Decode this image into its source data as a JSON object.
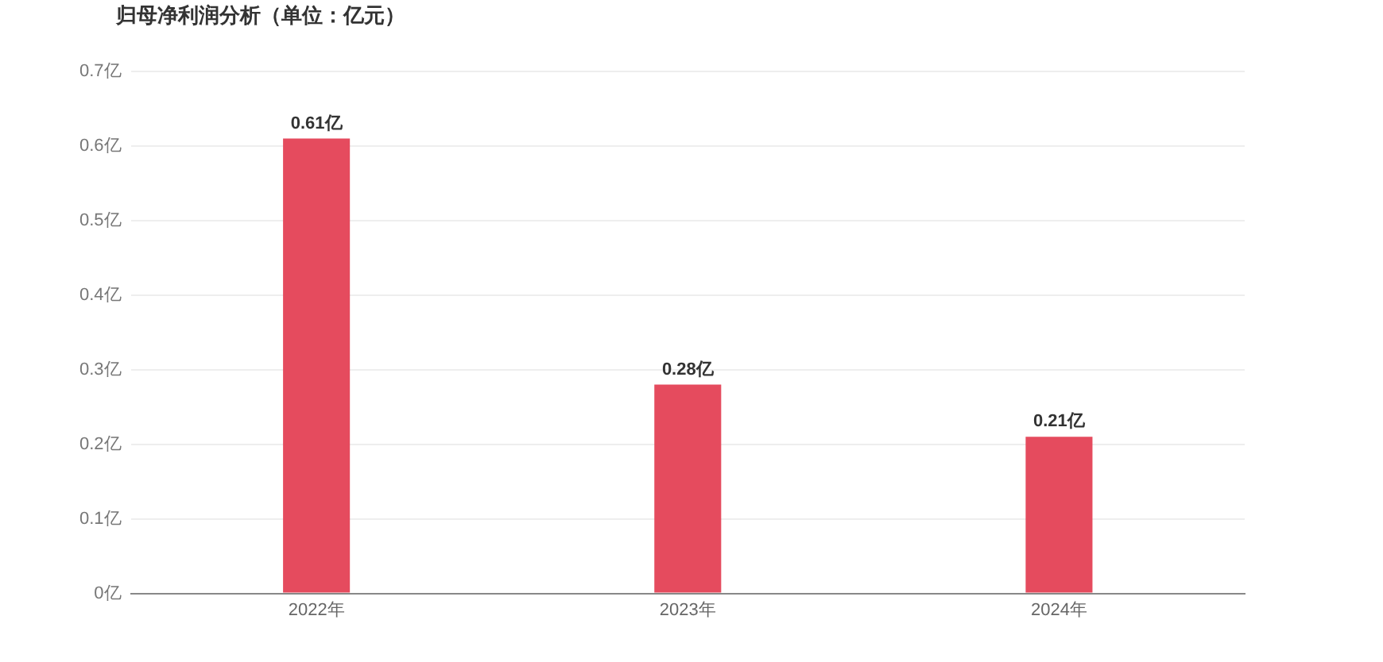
{
  "chart_data": {
    "type": "bar",
    "title": "归母净利润分析（单位：亿元）",
    "categories": [
      "2022年",
      "2023年",
      "2024年"
    ],
    "values": [
      0.61,
      0.28,
      0.21
    ],
    "value_labels": [
      "0.61亿",
      "0.28亿",
      "0.21亿"
    ],
    "color": "#e54b5e",
    "ylim": [
      0,
      0.7
    ],
    "yticks": [
      {
        "value": 0,
        "label": "0亿"
      },
      {
        "value": 0.1,
        "label": "0.1亿"
      },
      {
        "value": 0.2,
        "label": "0.2亿"
      },
      {
        "value": 0.3,
        "label": "0.3亿"
      },
      {
        "value": 0.4,
        "label": "0.4亿"
      },
      {
        "value": 0.5,
        "label": "0.5亿"
      },
      {
        "value": 0.6,
        "label": "0.6亿"
      },
      {
        "value": 0.7,
        "label": "0.7亿"
      }
    ],
    "grid": "y",
    "legend": false
  }
}
